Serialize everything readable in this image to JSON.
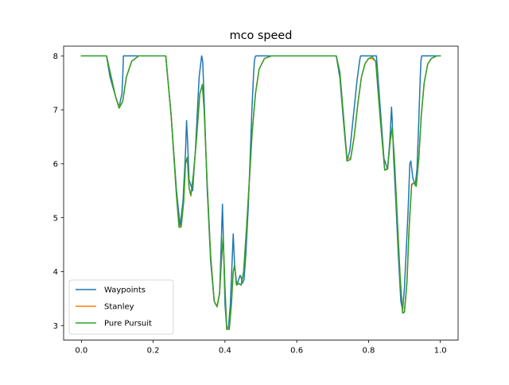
{
  "chart_data": {
    "type": "line",
    "title": "mco speed",
    "xlabel": "",
    "ylabel": "",
    "xlim": [
      -0.0495,
      1.0495
    ],
    "ylim": [
      2.73,
      8.18
    ],
    "xticks": [
      0.0,
      0.2,
      0.4,
      0.6,
      0.8,
      1.0
    ],
    "xtick_labels": [
      "0.0",
      "0.2",
      "0.4",
      "0.6",
      "0.8",
      "1.0"
    ],
    "yticks": [
      3,
      4,
      5,
      6,
      7,
      8
    ],
    "ytick_labels": [
      "3",
      "4",
      "5",
      "6",
      "7",
      "8"
    ],
    "grid": false,
    "legend_position": "lower-left",
    "series": [
      {
        "name": "Waypoints",
        "color": "#1f77b4",
        "x": [
          0.0,
          0.07,
          0.08,
          0.095,
          0.105,
          0.113,
          0.116,
          0.117,
          0.235,
          0.25,
          0.265,
          0.275,
          0.283,
          0.29,
          0.293,
          0.296,
          0.3,
          0.31,
          0.318,
          0.328,
          0.335,
          0.338,
          0.343,
          0.35,
          0.36,
          0.37,
          0.378,
          0.385,
          0.39,
          0.393,
          0.396,
          0.4,
          0.405,
          0.41,
          0.415,
          0.42,
          0.423,
          0.427,
          0.433,
          0.438,
          0.442,
          0.445,
          0.448,
          0.453,
          0.458,
          0.465,
          0.47,
          0.475,
          0.48,
          0.482,
          0.484,
          0.486,
          0.71,
          0.72,
          0.73,
          0.74,
          0.748,
          0.758,
          0.768,
          0.775,
          0.777,
          0.778,
          0.822,
          0.833,
          0.843,
          0.853,
          0.86,
          0.864,
          0.866,
          0.87,
          0.876,
          0.883,
          0.89,
          0.895,
          0.9,
          0.91,
          0.915,
          0.918,
          0.923,
          0.93,
          0.935,
          0.94,
          0.944,
          0.946,
          0.948,
          1.0
        ],
        "y": [
          8.0,
          8.0,
          7.6,
          7.25,
          7.05,
          7.3,
          7.75,
          8.0,
          8.0,
          6.9,
          5.5,
          4.85,
          5.3,
          6.2,
          6.8,
          6.4,
          5.7,
          5.5,
          6.3,
          7.6,
          8.0,
          7.9,
          7.0,
          5.6,
          4.2,
          3.45,
          3.35,
          3.6,
          4.6,
          5.25,
          4.5,
          3.4,
          2.93,
          2.98,
          3.4,
          4.2,
          4.7,
          4.1,
          3.75,
          3.85,
          3.93,
          3.9,
          3.78,
          3.85,
          4.3,
          5.2,
          6.1,
          7.0,
          7.7,
          7.9,
          7.98,
          8.0,
          8.0,
          7.6,
          6.8,
          6.05,
          6.25,
          6.9,
          7.55,
          7.9,
          7.98,
          8.0,
          8.0,
          7.0,
          6.1,
          5.9,
          6.5,
          7.05,
          6.8,
          6.1,
          5.3,
          4.3,
          3.45,
          3.28,
          3.7,
          5.1,
          6.0,
          6.05,
          5.75,
          5.6,
          5.9,
          6.8,
          7.6,
          7.9,
          8.0,
          8.0
        ]
      },
      {
        "name": "Stanley",
        "color": "#ff7f0e",
        "x": [
          0.0,
          0.07,
          0.08,
          0.095,
          0.105,
          0.115,
          0.125,
          0.14,
          0.16,
          0.18,
          0.235,
          0.25,
          0.265,
          0.272,
          0.278,
          0.285,
          0.29,
          0.295,
          0.3,
          0.305,
          0.312,
          0.32,
          0.33,
          0.337,
          0.342,
          0.35,
          0.36,
          0.37,
          0.378,
          0.385,
          0.39,
          0.395,
          0.4,
          0.405,
          0.412,
          0.418,
          0.423,
          0.427,
          0.432,
          0.438,
          0.445,
          0.452,
          0.46,
          0.468,
          0.476,
          0.485,
          0.495,
          0.51,
          0.53,
          0.71,
          0.72,
          0.73,
          0.74,
          0.75,
          0.76,
          0.77,
          0.78,
          0.79,
          0.8,
          0.81,
          0.82,
          0.833,
          0.845,
          0.853,
          0.86,
          0.866,
          0.872,
          0.88,
          0.888,
          0.895,
          0.9,
          0.907,
          0.913,
          0.92,
          0.927,
          0.933,
          0.94,
          0.947,
          0.955,
          0.965,
          0.975,
          0.99,
          1.0
        ],
        "y": [
          8.0,
          8.0,
          7.7,
          7.25,
          7.05,
          7.15,
          7.6,
          7.9,
          8.0,
          8.0,
          8.0,
          6.9,
          5.4,
          4.85,
          4.85,
          5.3,
          6.0,
          6.1,
          5.55,
          5.4,
          5.8,
          6.4,
          7.3,
          7.45,
          7.0,
          5.7,
          4.3,
          3.45,
          3.35,
          3.6,
          4.2,
          4.6,
          3.7,
          2.95,
          2.95,
          3.4,
          4.0,
          4.1,
          3.75,
          3.78,
          3.75,
          4.0,
          4.8,
          5.7,
          6.6,
          7.3,
          7.75,
          7.95,
          8.0,
          8.0,
          7.7,
          6.9,
          6.1,
          6.1,
          6.5,
          7.1,
          7.6,
          7.85,
          7.95,
          7.95,
          7.9,
          6.8,
          5.9,
          5.9,
          6.4,
          6.65,
          6.1,
          5.0,
          3.9,
          3.25,
          3.25,
          3.8,
          4.8,
          5.6,
          5.65,
          5.6,
          6.1,
          6.9,
          7.5,
          7.85,
          7.95,
          8.0,
          8.0
        ]
      },
      {
        "name": "Pure Pursuit",
        "color": "#2ca02c",
        "x": [
          0.0,
          0.07,
          0.08,
          0.095,
          0.105,
          0.115,
          0.125,
          0.14,
          0.16,
          0.18,
          0.235,
          0.25,
          0.265,
          0.272,
          0.278,
          0.285,
          0.29,
          0.295,
          0.3,
          0.305,
          0.312,
          0.32,
          0.33,
          0.337,
          0.342,
          0.35,
          0.36,
          0.37,
          0.378,
          0.385,
          0.39,
          0.395,
          0.4,
          0.405,
          0.412,
          0.418,
          0.423,
          0.427,
          0.432,
          0.438,
          0.445,
          0.452,
          0.46,
          0.468,
          0.476,
          0.485,
          0.495,
          0.51,
          0.53,
          0.71,
          0.72,
          0.73,
          0.74,
          0.75,
          0.76,
          0.77,
          0.78,
          0.79,
          0.8,
          0.81,
          0.82,
          0.833,
          0.845,
          0.853,
          0.86,
          0.866,
          0.872,
          0.88,
          0.888,
          0.895,
          0.9,
          0.907,
          0.913,
          0.92,
          0.927,
          0.933,
          0.94,
          0.947,
          0.955,
          0.965,
          0.975,
          0.99,
          1.0
        ],
        "y": [
          8.0,
          8.0,
          7.7,
          7.25,
          7.03,
          7.15,
          7.6,
          7.9,
          8.0,
          8.0,
          8.0,
          6.9,
          5.4,
          4.82,
          4.83,
          5.3,
          6.0,
          6.12,
          5.55,
          5.42,
          5.8,
          6.4,
          7.3,
          7.47,
          7.0,
          5.7,
          4.3,
          3.45,
          3.35,
          3.6,
          4.2,
          4.65,
          3.7,
          2.93,
          2.93,
          3.4,
          4.0,
          4.12,
          3.75,
          3.78,
          3.75,
          4.0,
          4.8,
          5.7,
          6.6,
          7.3,
          7.75,
          7.95,
          8.0,
          8.0,
          7.7,
          6.9,
          6.05,
          6.08,
          6.5,
          7.1,
          7.6,
          7.85,
          7.95,
          7.98,
          7.9,
          6.8,
          5.88,
          5.9,
          6.4,
          6.68,
          6.1,
          5.0,
          3.9,
          3.23,
          3.25,
          3.8,
          4.8,
          5.62,
          5.65,
          5.58,
          6.1,
          6.9,
          7.5,
          7.85,
          7.95,
          8.0,
          8.0
        ]
      }
    ]
  }
}
